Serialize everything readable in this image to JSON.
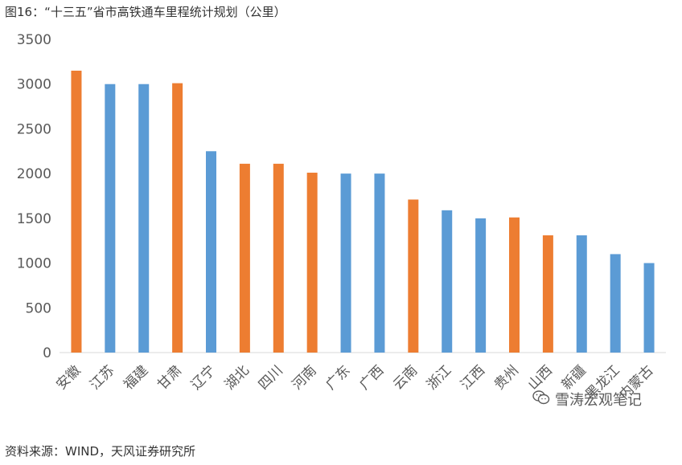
{
  "title": "图16：“十三五”省市高铁通车里程统计规划（公里）",
  "source": "资料来源：WIND，天风证券研究所",
  "watermark": "雪涛宏观笔记",
  "colors": {
    "orange": "#ED7D31",
    "blue": "#5B9BD5",
    "axis": "#D9D9D9",
    "tick": "#595959"
  },
  "chart_data": {
    "type": "bar",
    "title": "“十三五”省市高铁通车里程统计规划（公里）",
    "xlabel": "",
    "ylabel": "",
    "ylim": [
      0,
      3500
    ],
    "yticks": [
      0,
      500,
      1000,
      1500,
      2000,
      2500,
      3000,
      3500
    ],
    "grid": false,
    "legend": "none",
    "categories": [
      "安徽",
      "江苏",
      "福建",
      "甘肃",
      "辽宁",
      "湖北",
      "四川",
      "河南",
      "广东",
      "广西",
      "云南",
      "浙江",
      "江西",
      "贵州",
      "山西",
      "新疆",
      "黑龙江",
      "内蒙古"
    ],
    "values": [
      3150,
      3000,
      3000,
      3010,
      2250,
      2110,
      2110,
      2010,
      2000,
      2000,
      1710,
      1590,
      1500,
      1510,
      1310,
      1310,
      1100,
      1000
    ],
    "bar_colors": [
      "orange",
      "blue",
      "blue",
      "orange",
      "blue",
      "orange",
      "orange",
      "orange",
      "blue",
      "blue",
      "orange",
      "blue",
      "blue",
      "orange",
      "orange",
      "blue",
      "blue",
      "blue"
    ]
  }
}
